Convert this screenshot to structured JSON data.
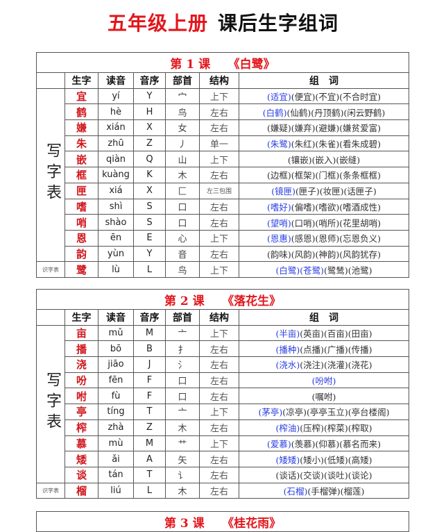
{
  "title": {
    "red": "五年级上册",
    "black": "课后生字组词"
  },
  "headers": [
    "生字",
    "读音",
    "音序",
    "部首",
    "结构",
    "组　词"
  ],
  "side_label": "写字表",
  "side_small": "识字表",
  "lessons": [
    {
      "label": "第 1 课　　《白鹭》",
      "rows": [
        {
          "char": "宜",
          "py": "yí",
          "ord": "Y",
          "rad": "宀",
          "str": "上下",
          "blue": "(适宜)",
          "rest": "(便宜)(不宜)(不合时宜)"
        },
        {
          "char": "鹤",
          "py": "hè",
          "ord": "H",
          "rad": "鸟",
          "str": "左右",
          "blue": "(白鹤)",
          "rest": "(仙鹤)(丹顶鹤)(闲云野鹤)"
        },
        {
          "char": "嫌",
          "py": "xián",
          "ord": "X",
          "rad": "女",
          "str": "左右",
          "blue": "",
          "rest": "(嫌疑)(嫌弃)(避嫌)(嫌贫爱富)"
        },
        {
          "char": "朱",
          "py": "zhū",
          "ord": "Z",
          "rad": "丿",
          "str": "单一",
          "blue": "(朱鹭)",
          "rest": "(朱红)(朱雀)(看朱成碧)"
        },
        {
          "char": "嵌",
          "py": "qiàn",
          "ord": "Q",
          "rad": "山",
          "str": "上下",
          "blue": "",
          "rest": "(镶嵌)(嵌入)(嵌缝)"
        },
        {
          "char": "框",
          "py": "kuàng",
          "ord": "K",
          "rad": "木",
          "str": "左右",
          "blue": "",
          "rest": "(边框)(框架)(门框)(条条框框)"
        },
        {
          "char": "匣",
          "py": "xiá",
          "ord": "X",
          "rad": "匚",
          "str": "左三包围",
          "blue": "(镜匣)",
          "rest": "(匣子)(妆匣)(话匣子)"
        },
        {
          "char": "嗜",
          "py": "shì",
          "ord": "S",
          "rad": "口",
          "str": "左右",
          "blue": "(嗜好)",
          "rest": "(偏嗜)(嗜欲)(嗜酒成性)"
        },
        {
          "char": "哨",
          "py": "shào",
          "ord": "S",
          "rad": "口",
          "str": "左右",
          "blue": "(望哨)",
          "rest": "(口哨)(哨所)(花里胡哨)"
        },
        {
          "char": "恩",
          "py": "ēn",
          "ord": "E",
          "rad": "心",
          "str": "上下",
          "blue": "(恩惠)",
          "rest": "(感恩)(恩师)(忘恩负义)"
        },
        {
          "char": "韵",
          "py": "yùn",
          "ord": "Y",
          "rad": "音",
          "str": "左右",
          "blue": "",
          "rest": "(韵味)(风韵)(神韵)(风韵犹存)"
        }
      ],
      "extra": {
        "char": "鹭",
        "py": "lù",
        "ord": "L",
        "rad": "鸟",
        "str": "上下",
        "blue": "(白鹭)(苍鹭)",
        "rest": "(鹭鸶)(池鹭)"
      }
    },
    {
      "label": "第 2 课　　《落花生》",
      "rows": [
        {
          "char": "亩",
          "py": "mǔ",
          "ord": "M",
          "rad": "亠",
          "str": "上下",
          "blue": "(半亩)",
          "rest": "(英亩)(百亩)(田亩)"
        },
        {
          "char": "播",
          "py": "bō",
          "ord": "B",
          "rad": "扌",
          "str": "左右",
          "blue": "(播种)",
          "rest": "(点播)(广播)(传播)"
        },
        {
          "char": "浇",
          "py": "jiāo",
          "ord": "J",
          "rad": "氵",
          "str": "左右",
          "blue": "(浇水)",
          "rest": "(浇注)(浇灌)(浇花)"
        },
        {
          "char": "吩",
          "py": "fēn",
          "ord": "F",
          "rad": "口",
          "str": "左右",
          "blue": "(吩咐)",
          "rest": ""
        },
        {
          "char": "咐",
          "py": "fù",
          "ord": "F",
          "rad": "口",
          "str": "左右",
          "blue": "",
          "rest": "(嘱咐)"
        },
        {
          "char": "亭",
          "py": "tíng",
          "ord": "T",
          "rad": "亠",
          "str": "上下",
          "blue": "(茅亭)",
          "rest": "(凉亭)(亭亭玉立)(亭台楼阁)"
        },
        {
          "char": "榨",
          "py": "zhà",
          "ord": "Z",
          "rad": "木",
          "str": "左右",
          "blue": "(榨油)",
          "rest": "(压榨)(榨菜)(榨取)"
        },
        {
          "char": "慕",
          "py": "mù",
          "ord": "M",
          "rad": "艹",
          "str": "上下",
          "blue": "(爱慕)",
          "rest": "(羡慕)(仰慕)(慕名而来)"
        },
        {
          "char": "矮",
          "py": "ǎi",
          "ord": "A",
          "rad": "矢",
          "str": "左右",
          "blue": "(矮矮)",
          "rest": "(矮小)(低矮)(高矮)"
        },
        {
          "char": "谈",
          "py": "tán",
          "ord": "T",
          "rad": "讠",
          "str": "左右",
          "blue": "",
          "rest": "(谈话)(交谈)(谈吐)(谈论)"
        }
      ],
      "extra": {
        "char": "榴",
        "py": "liú",
        "ord": "L",
        "rad": "木",
        "str": "左右",
        "blue": "(石榴)",
        "rest": "(手榴弹)(榴莲)"
      }
    },
    {
      "label": "第 3 课　　《桂花雨》"
    }
  ]
}
